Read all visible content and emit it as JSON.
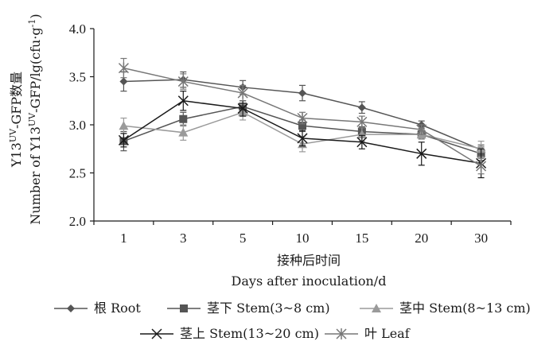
{
  "chart_data": {
    "type": "line",
    "title": "",
    "categories": [
      "1",
      "3",
      "5",
      "10",
      "15",
      "20",
      "30"
    ],
    "xlabel_cn": "接种后时间",
    "xlabel_en": "Days after inoculation/d",
    "ylabel_cn": "Y13UV-GFP数量",
    "ylabel_en": "Number of Y13UV-GFP/lg(cfu·g-1)",
    "ylim": [
      2.0,
      4.0
    ],
    "yticks": [
      "2.0",
      "2.5",
      "3.0",
      "3.5",
      "4.0"
    ],
    "series": [
      {
        "name": "根 Root",
        "marker": "diamond",
        "color": "#555555",
        "values": [
          3.45,
          3.47,
          3.39,
          3.33,
          3.18,
          3.0,
          2.74
        ],
        "errors": [
          0.1,
          0.08,
          0.07,
          0.08,
          0.06,
          0.04,
          0.05
        ]
      },
      {
        "name": "茎下 Stem(3~8 cm)",
        "marker": "square",
        "color": "#555555",
        "values": [
          2.83,
          3.06,
          3.19,
          2.99,
          2.93,
          2.9,
          2.7
        ],
        "errors": [
          0.1,
          0.07,
          0.06,
          0.06,
          0.05,
          0.04,
          0.07
        ]
      },
      {
        "name": "茎中 Stem(8~13 cm)",
        "marker": "triangle",
        "color": "#9a9a9a",
        "values": [
          2.99,
          2.92,
          3.13,
          2.8,
          2.9,
          2.9,
          2.75
        ],
        "errors": [
          0.08,
          0.08,
          0.08,
          0.08,
          0.07,
          0.05,
          0.08
        ]
      },
      {
        "name": "茎上 Stem(13~20 cm)",
        "marker": "x",
        "color": "#1a1a1a",
        "values": [
          2.84,
          3.25,
          3.17,
          2.86,
          2.82,
          2.7,
          2.6
        ],
        "errors": [
          0.07,
          0.1,
          0.08,
          0.08,
          0.07,
          0.12,
          0.15
        ]
      },
      {
        "name": "叶 Leaf",
        "marker": "asterisk",
        "color": "#777777",
        "values": [
          3.59,
          3.45,
          3.33,
          3.07,
          3.03,
          2.95,
          2.57
        ],
        "errors": [
          0.1,
          0.08,
          0.08,
          0.06,
          0.06,
          0.05,
          0.08
        ]
      }
    ]
  }
}
